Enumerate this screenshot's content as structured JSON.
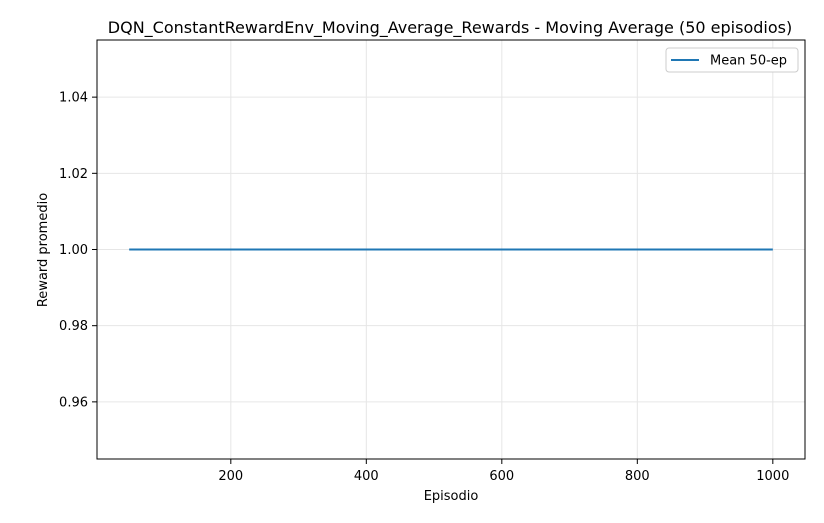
{
  "chart_data": {
    "type": "line",
    "title": "DQN_ConstantRewardEnv_Moving_Average_Rewards - Moving Average (50 episodios)",
    "xlabel": "Episodio",
    "ylabel": "Reward promedio",
    "xlim": [
      2.5,
      1047.5
    ],
    "ylim": [
      0.945,
      1.055
    ],
    "xticks": [
      200,
      400,
      600,
      800,
      1000
    ],
    "yticks": [
      0.96,
      0.98,
      1.0,
      1.02,
      1.04
    ],
    "xtick_labels": [
      "200",
      "400",
      "600",
      "800",
      "1000"
    ],
    "ytick_labels": [
      "0.96",
      "0.98",
      "1.00",
      "1.02",
      "1.04"
    ],
    "grid": true,
    "legend_position": "top-right",
    "series": [
      {
        "name": "Mean 50-ep",
        "color": "#1f77b4",
        "x": [
          50,
          1000
        ],
        "y": [
          1.0,
          1.0
        ]
      }
    ]
  }
}
